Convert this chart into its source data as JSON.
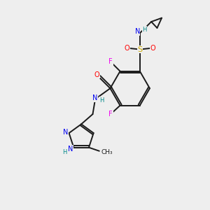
{
  "bg_color": "#eeeeee",
  "bond_color": "#1a1a1a",
  "atom_colors": {
    "F": "#ee00ee",
    "O": "#ff0000",
    "N": "#0000ee",
    "S": "#ccaa00",
    "H": "#008888",
    "C": "#1a1a1a"
  }
}
